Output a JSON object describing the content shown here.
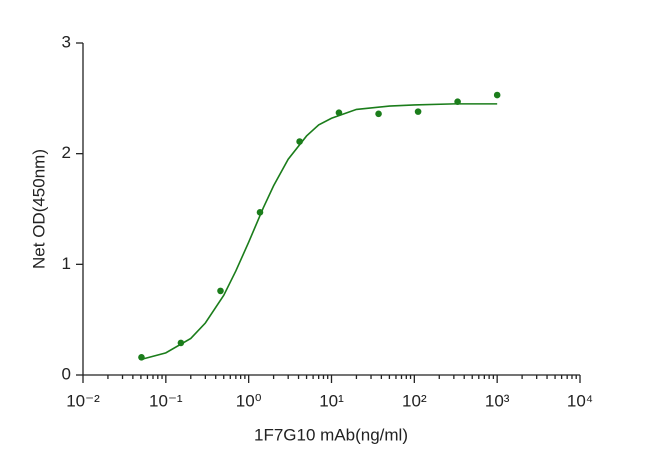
{
  "chart_data": {
    "type": "scatter",
    "xlabel": "1F7G10 mAb(ng/ml)",
    "ylabel": "Net OD(450nm)",
    "x": [
      0.0508,
      0.152,
      0.457,
      1.37,
      4.12,
      12.3,
      37,
      111,
      333,
      1000
    ],
    "values": [
      0.16,
      0.29,
      0.76,
      1.47,
      2.11,
      2.37,
      2.36,
      2.38,
      2.47,
      2.53
    ],
    "color": "#1b7d1b",
    "fit": {
      "x": [
        0.05,
        0.1,
        0.2,
        0.3,
        0.5,
        0.7,
        1,
        1.5,
        2,
        3,
        5,
        7,
        10,
        20,
        50,
        100,
        300,
        1000
      ],
      "values": [
        0.14,
        0.2,
        0.33,
        0.47,
        0.72,
        0.94,
        1.2,
        1.51,
        1.71,
        1.95,
        2.16,
        2.26,
        2.32,
        2.4,
        2.43,
        2.44,
        2.45,
        2.45
      ]
    },
    "xscale": "log",
    "xlim": [
      0.01,
      10000
    ],
    "xticks": [
      {
        "value": 0.01,
        "label": "10⁻²"
      },
      {
        "value": 0.1,
        "label": "10⁻¹"
      },
      {
        "value": 1,
        "label": "10⁰"
      },
      {
        "value": 10,
        "label": "10¹"
      },
      {
        "value": 100,
        "label": "10²"
      },
      {
        "value": 1000,
        "label": "10³"
      },
      {
        "value": 10000,
        "label": "10⁴"
      }
    ],
    "xminor": [
      2,
      3,
      4,
      5,
      6,
      7,
      8,
      9
    ],
    "ylim": [
      0,
      3
    ],
    "yticks": [
      0,
      1,
      2,
      3
    ]
  }
}
